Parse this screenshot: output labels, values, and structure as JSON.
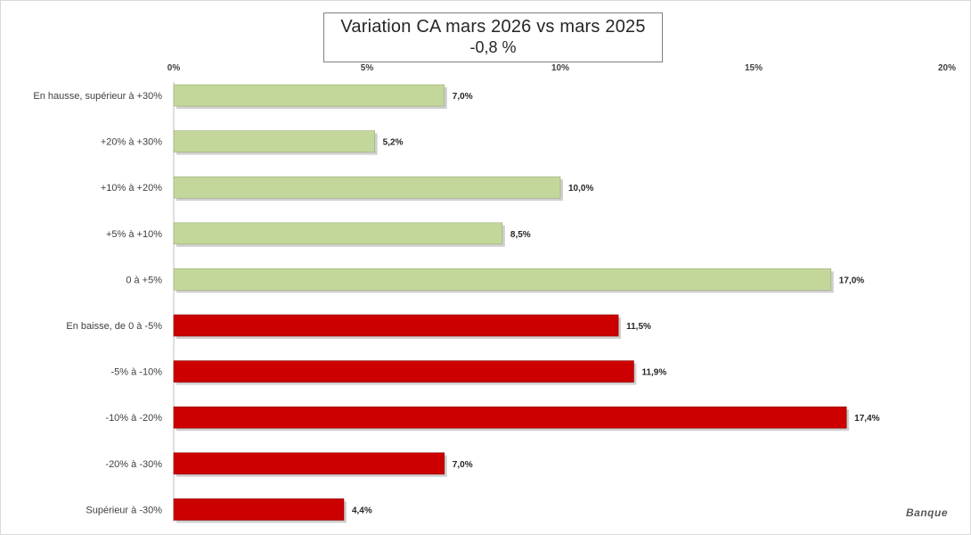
{
  "chart_data": {
    "type": "bar",
    "orientation": "horizontal",
    "title": "Variation CA mars 2026 vs mars 2025",
    "subtitle": "-0,8 %",
    "xlim": [
      0,
      20
    ],
    "x_ticks": [
      "0%",
      "5%",
      "10%",
      "15%",
      "20%"
    ],
    "x_tick_values": [
      0,
      5,
      10,
      15,
      20
    ],
    "x_axis_position": "top",
    "grid": false,
    "legend": "none",
    "categories": [
      "En hausse, supérieur à +30%",
      "+20% à +30%",
      "+10% à +20%",
      "+5% à +10%",
      "0 à +5%",
      "En baisse, de 0 à -5%",
      "-5% à -10%",
      "-10% à -20%",
      "-20% à -30%",
      "Supérieur à -30%"
    ],
    "values": [
      7.0,
      5.2,
      10.0,
      8.5,
      17.0,
      11.5,
      11.9,
      17.4,
      7.0,
      4.4
    ],
    "data_labels": [
      "7,0%",
      "5,2%",
      "10,0%",
      "8,5%",
      "17,0%",
      "11,5%",
      "11,9%",
      "17,4%",
      "7,0%",
      "4,4%"
    ],
    "bar_colors": [
      "#c4d79b",
      "#c4d79b",
      "#c4d79b",
      "#c4d79b",
      "#c4d79b",
      "#cc0000",
      "#cc0000",
      "#cc0000",
      "#cc0000",
      "#cc0000"
    ]
  },
  "watermark": "Banque"
}
